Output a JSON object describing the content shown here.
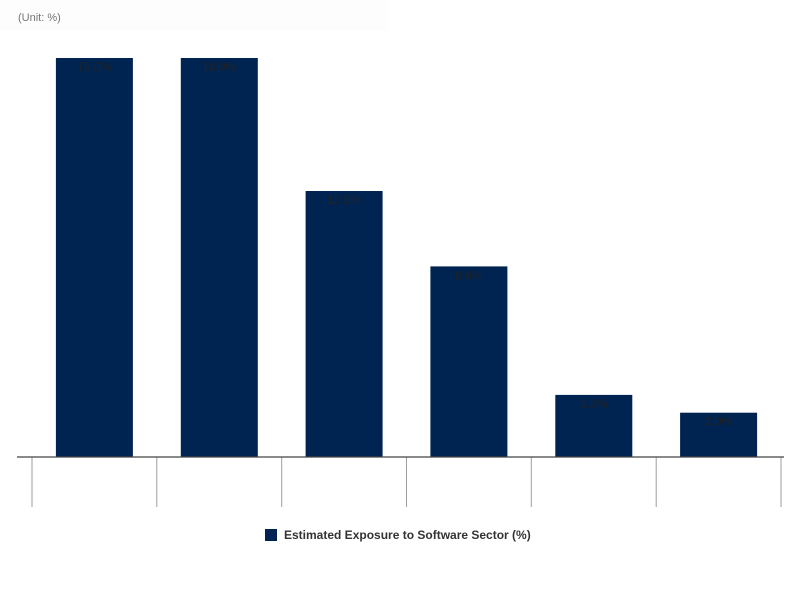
{
  "chart_data": {
    "type": "bar",
    "unit_label": "(Unit: %)",
    "categories": [
      "",
      "",
      "",
      "",
      "",
      ""
    ],
    "series": [
      {
        "name": "Estimated Exposure to Software Sector (%)",
        "values": [
          18.0,
          18.0,
          12.0,
          8.6,
          2.8,
          2.0
        ],
        "labels": [
          "18.0%",
          "18.0%",
          "12.0%",
          "8.6%",
          "2.8%",
          "2.0%"
        ]
      }
    ],
    "ylim": [
      0,
      18
    ],
    "grid": false,
    "legend_position": "bottom",
    "colors": {
      "bar": "#002451",
      "axis": "#444444",
      "tick": "#9e9e9e"
    }
  }
}
